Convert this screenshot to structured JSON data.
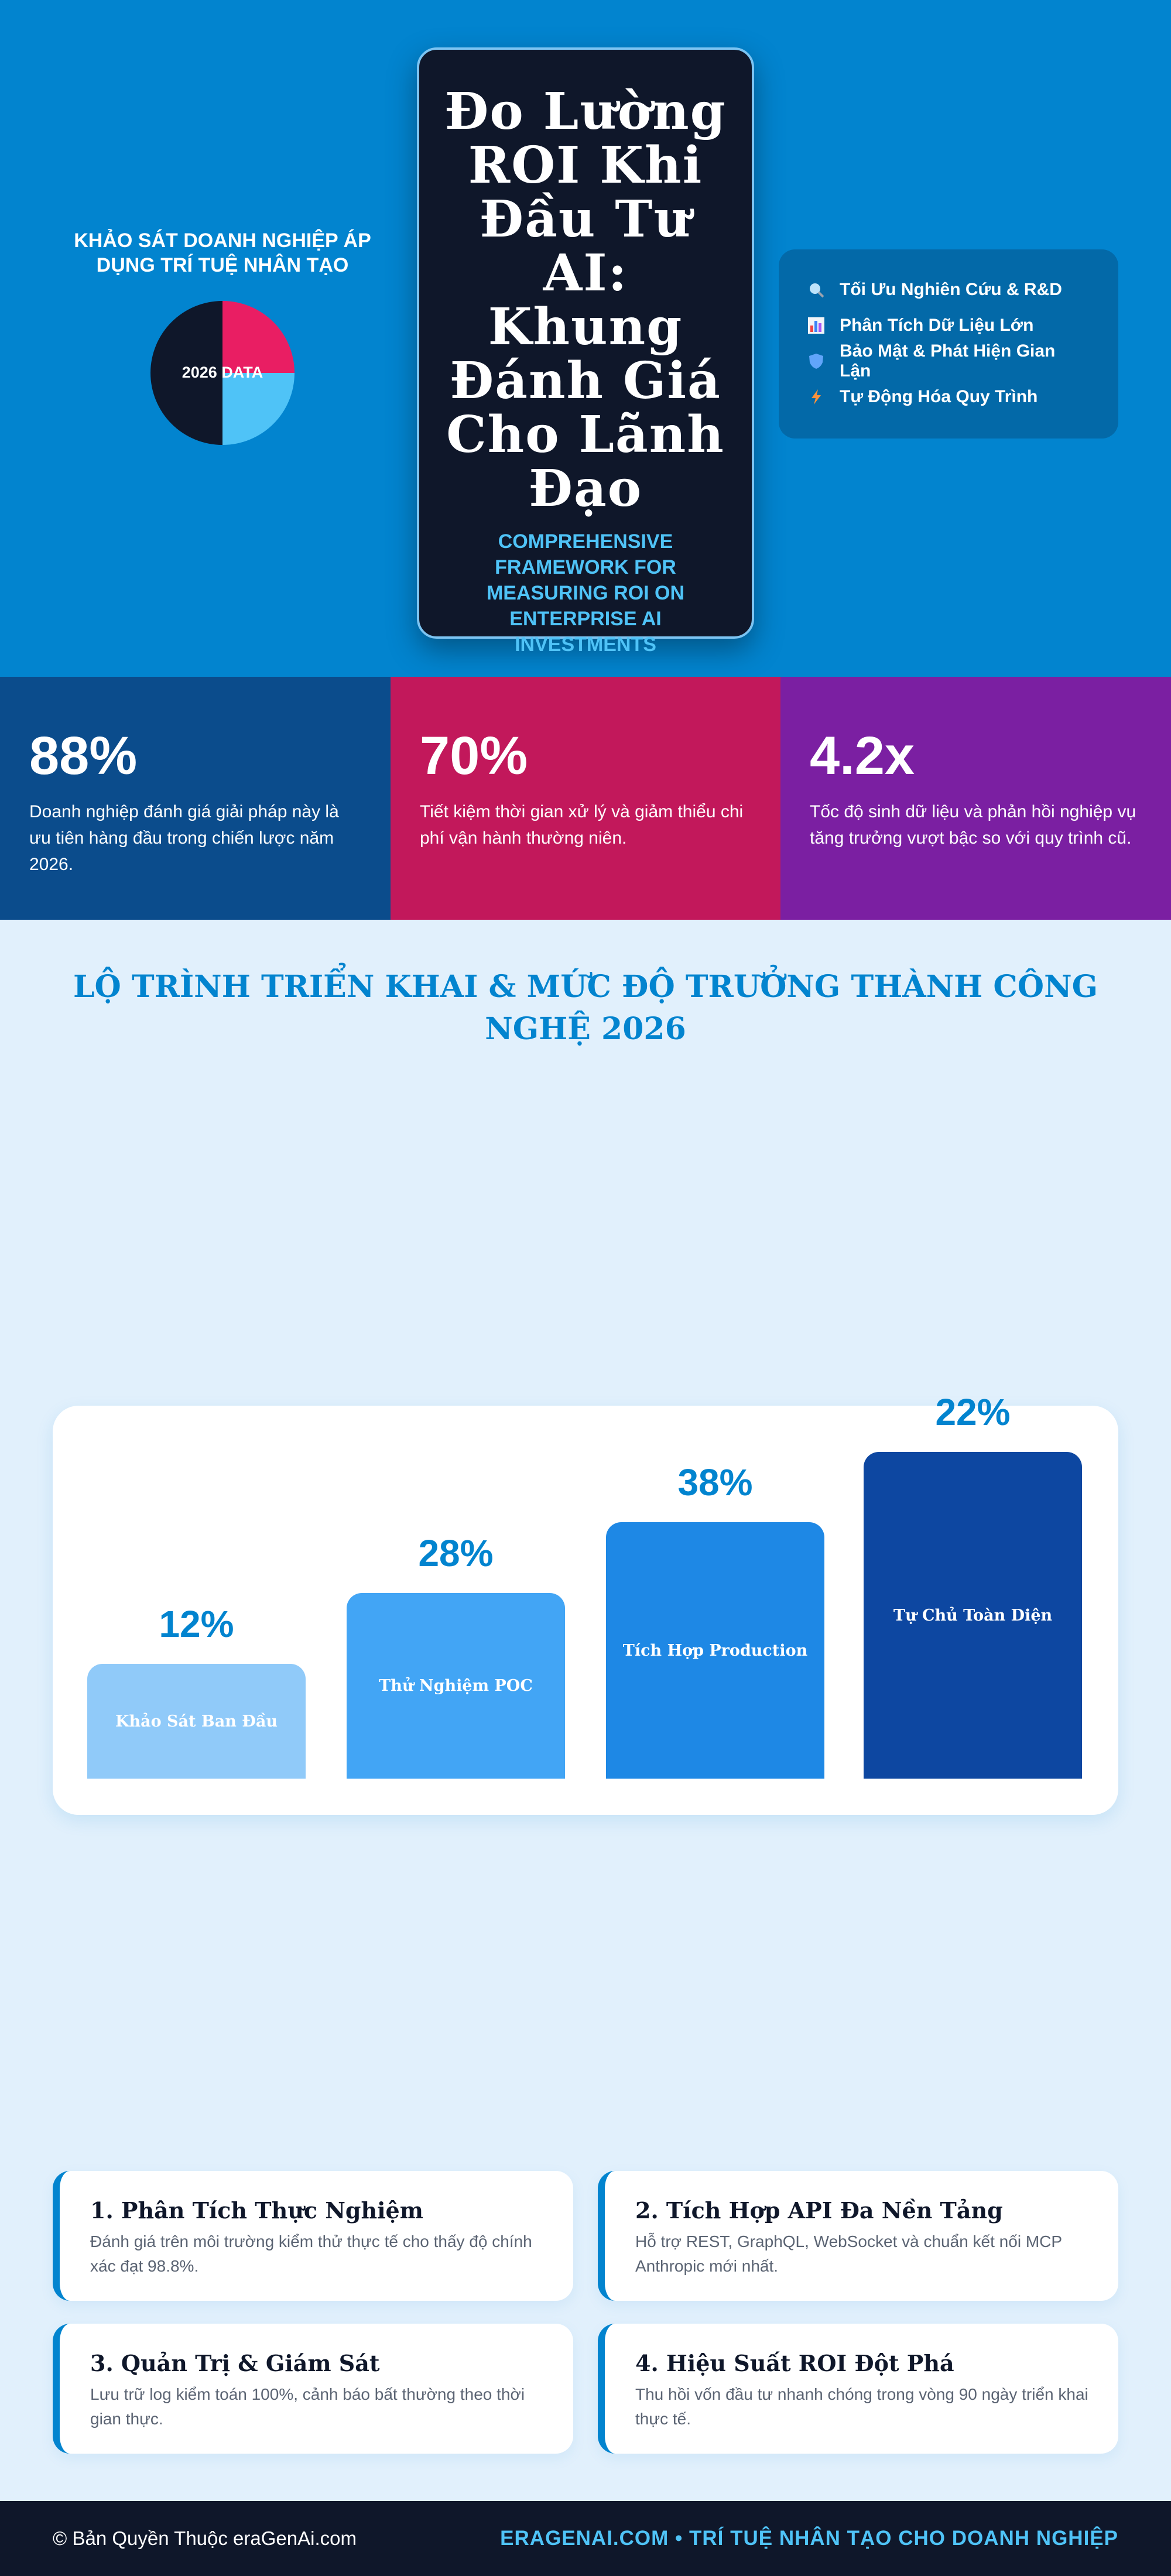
{
  "hero": {
    "survey_title": "KHẢO SÁT DOANH NGHIỆP ÁP DỤNG TRÍ TUỆ NHÂN TẠO",
    "pie_label": "2026 DATA",
    "title": "Đo Lường ROI Khi Đầu Tư AI: Khung Đánh Giá Cho Lãnh Đạo",
    "subtitle": "COMPREHENSIVE FRAMEWORK FOR MEASURING ROI ON ENTERPRISE AI INVESTMENTS",
    "features": [
      "Tối Ưu Nghiên Cứu & R&D",
      "Phân Tích Dữ Liệu Lớn",
      "Bảo Mật & Phát Hiện Gian Lận",
      "Tự Động Hóa Quy Trình"
    ]
  },
  "stats": [
    {
      "value": "88%",
      "text": "Doanh nghiệp đánh giá giải pháp này là ưu tiên hàng đầu trong chiến lược năm 2026."
    },
    {
      "value": "70%",
      "text": "Tiết kiệm thời gian xử lý và giảm thiểu chi phí vận hành thường niên."
    },
    {
      "value": "4.2x",
      "text": "Tốc độ sinh dữ liệu và phản hồi nghiệp vụ tăng trưởng vượt bậc so với quy trình cũ."
    }
  ],
  "roadmap": {
    "title": "LỘ TRÌNH TRIỂN KHAI & MỨC ĐỘ TRƯỞNG THÀNH CÔNG NGHỆ 2026",
    "stages": [
      {
        "percent": "12%",
        "label": "Khảo Sát Ban Đầu"
      },
      {
        "percent": "28%",
        "label": "Thử Nghiệm POC"
      },
      {
        "percent": "38%",
        "label": "Tích Hợp Production"
      },
      {
        "percent": "22%",
        "label": "Tự Chủ Toàn Diện"
      }
    ]
  },
  "cards": [
    {
      "title": "1. Phân Tích Thực Nghiệm",
      "text": "Đánh giá trên môi trường kiểm thử thực tế cho thấy độ chính xác đạt 98.8%."
    },
    {
      "title": "2. Tích Hợp API Đa Nền Tảng",
      "text": "Hỗ trợ REST, GraphQL, WebSocket và chuẩn kết nối MCP Anthropic mới nhất."
    },
    {
      "title": "3. Quản Trị & Giám Sát",
      "text": "Lưu trữ log kiểm toán 100%, cảnh báo bất thường theo thời gian thực."
    },
    {
      "title": "4. Hiệu Suất ROI Đột Phá",
      "text": "Thu hồi vốn đầu tư nhanh chóng trong vòng 90 ngày triển khai thực tế."
    }
  ],
  "footer": {
    "copyright": "© Bản Quyền Thuộc eraGenAi.com",
    "tagline": "ERAGENAI.COM • TRÍ TUỆ NHÂN TẠO CHO DOANH NGHIỆP"
  }
}
